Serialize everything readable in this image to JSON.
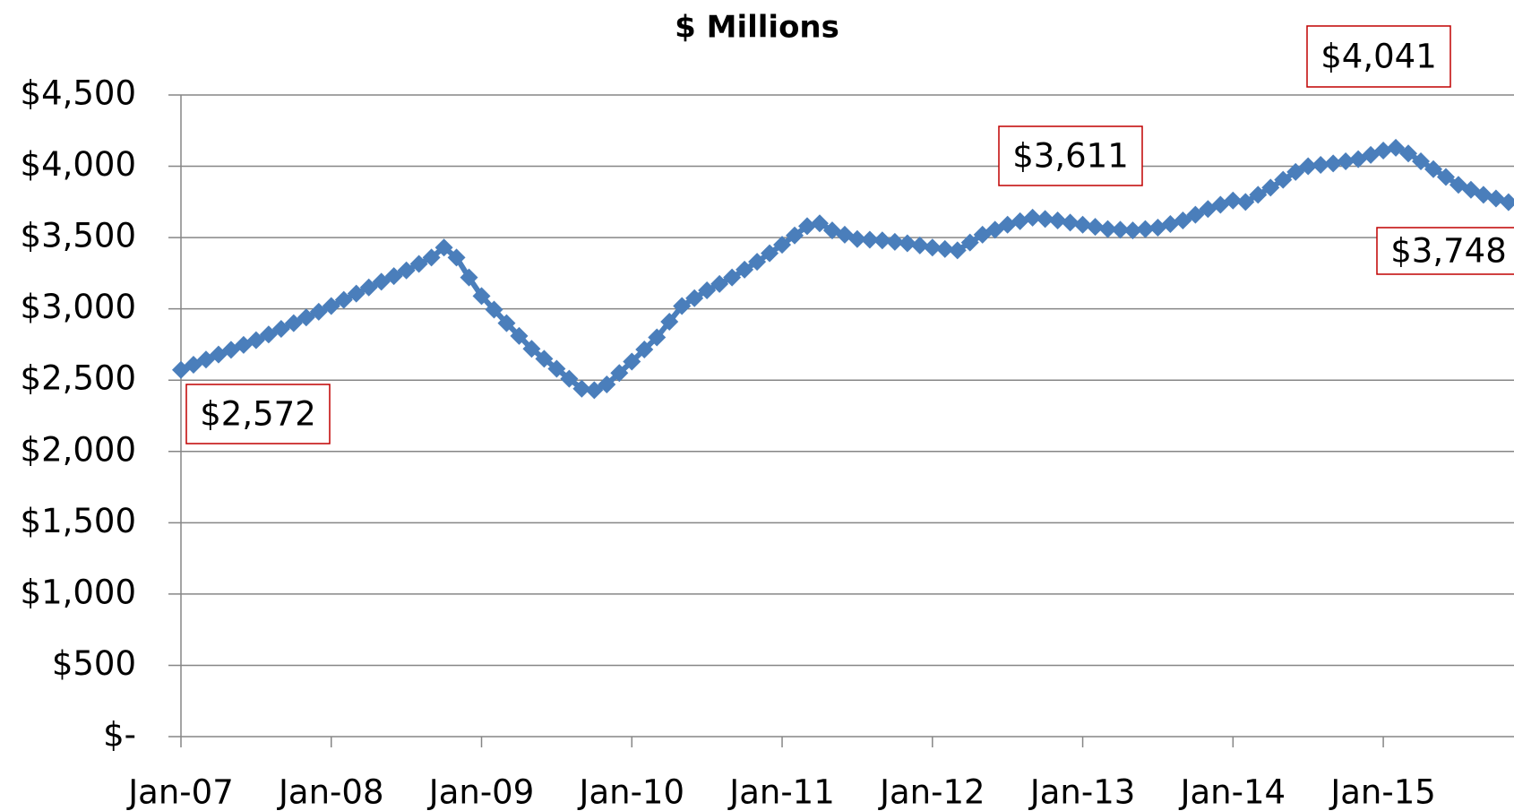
{
  "chart_data": {
    "type": "line",
    "title": "$ Millions",
    "categories": [
      "Jan-07",
      null,
      null,
      null,
      null,
      null,
      null,
      null,
      null,
      null,
      null,
      null,
      "Jan-08",
      null,
      null,
      null,
      null,
      null,
      null,
      null,
      null,
      null,
      null,
      null,
      "Jan-09",
      null,
      null,
      null,
      null,
      null,
      null,
      null,
      null,
      null,
      null,
      null,
      "Jan-10",
      null,
      null,
      null,
      null,
      null,
      null,
      null,
      null,
      null,
      null,
      null,
      "Jan-11",
      null,
      null,
      null,
      null,
      null,
      null,
      null,
      null,
      null,
      null,
      null,
      "Jan-12",
      null,
      null,
      null,
      null,
      null,
      null,
      null,
      null,
      null,
      null,
      null,
      "Jan-13",
      null,
      null,
      null,
      null,
      null,
      null,
      null,
      null,
      null,
      null,
      null,
      "Jan-14",
      null,
      null,
      null,
      null,
      null,
      null,
      null,
      null,
      null,
      null,
      null,
      "Jan-15",
      null,
      null,
      null,
      null,
      null,
      null,
      null,
      null,
      null,
      null
    ],
    "series": [
      {
        "color": "#4a7ebb",
        "values": [
          2572,
          2608,
          2644,
          2680,
          2713,
          2747,
          2780,
          2820,
          2860,
          2900,
          2940,
          2980,
          3020,
          3063,
          3107,
          3150,
          3190,
          3230,
          3270,
          3315,
          3360,
          3430,
          3360,
          3220,
          3090,
          2995,
          2900,
          2810,
          2720,
          2650,
          2580,
          2510,
          2440,
          2430,
          2470,
          2550,
          2630,
          2715,
          2800,
          2910,
          3020,
          3075,
          3130,
          3175,
          3220,
          3275,
          3330,
          3390,
          3450,
          3515,
          3580,
          3600,
          3550,
          3520,
          3490,
          3485,
          3480,
          3470,
          3460,
          3445,
          3430,
          3420,
          3410,
          3465,
          3520,
          3555,
          3590,
          3615,
          3640,
          3630,
          3620,
          3605,
          3590,
          3575,
          3560,
          3555,
          3550,
          3560,
          3570,
          3595,
          3620,
          3660,
          3700,
          3730,
          3760,
          3750,
          3800,
          3850,
          3905,
          3960,
          4000,
          4010,
          4020,
          4035,
          4050,
          4080,
          4110,
          4130,
          4090,
          4035,
          3980,
          3925,
          3870,
          3835,
          3800,
          3774,
          3748
        ]
      }
    ],
    "ylim": [
      0,
      4500
    ],
    "yticks": [
      {
        "value": 0,
        "label": "$-"
      },
      {
        "value": 500,
        "label": "$500"
      },
      {
        "value": 1000,
        "label": "$1,000"
      },
      {
        "value": 1500,
        "label": "$1,500"
      },
      {
        "value": 2000,
        "label": "$2,000"
      },
      {
        "value": 2500,
        "label": "$2,500"
      },
      {
        "value": 3000,
        "label": "$3,000"
      },
      {
        "value": 3500,
        "label": "$3,500"
      },
      {
        "value": 4000,
        "label": "$4,000"
      },
      {
        "value": 4500,
        "label": "$4,500"
      }
    ],
    "grid": true,
    "annotations": [
      "$2,572",
      "$3,611",
      "$4,041",
      "$3,748"
    ]
  }
}
